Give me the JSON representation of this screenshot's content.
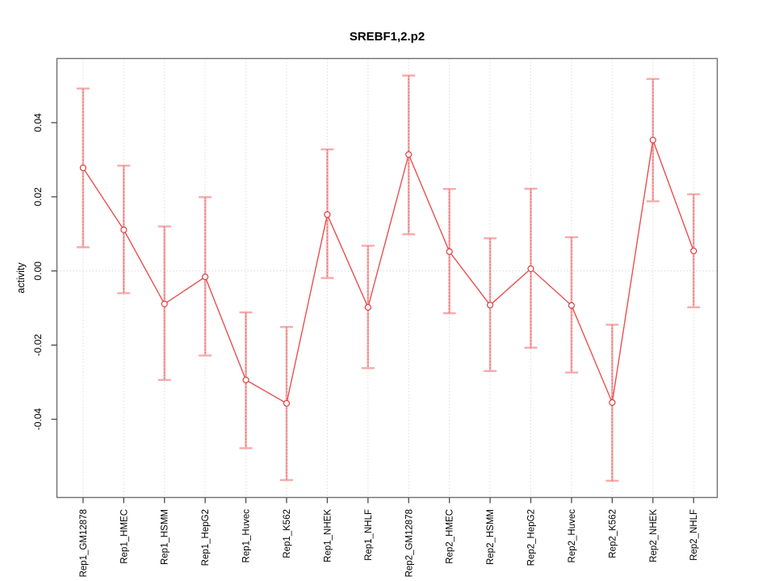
{
  "figure": {
    "title": "SREBF1,2.p2",
    "y_axis_label": "activity"
  },
  "chart_data": {
    "type": "line",
    "title": "SREBF1,2.p2",
    "xlabel": "",
    "ylabel": "activity",
    "legend_position": "none",
    "grid": "vertical dotted gridline at each category; dotted horizontal reference line at y=0",
    "point_marker": "open-circle",
    "error_bars": true,
    "categories": [
      "Rep1_GM12878",
      "Rep1_HMEC",
      "Rep1_HSMM",
      "Rep1_HepG2",
      "Rep1_Huvec",
      "Rep1_K562",
      "Rep1_NHEK",
      "Rep1_NHLF",
      "Rep2_GM12878",
      "Rep2_HMEC",
      "Rep2_HSMM",
      "Rep2_HepG2",
      "Rep2_Huvec",
      "Rep2_K562",
      "Rep2_NHEK",
      "Rep2_NHLF"
    ],
    "series": [
      {
        "name": "activity",
        "values": [
          0.0278,
          0.0111,
          -0.0089,
          -0.0016,
          -0.0294,
          -0.0357,
          0.0152,
          -0.0098,
          0.0314,
          0.0052,
          -0.0092,
          0.0006,
          -0.0093,
          -0.0355,
          0.0353,
          0.0054
        ],
        "ci_low": [
          0.0064,
          -0.006,
          -0.0294,
          -0.0228,
          -0.0478,
          -0.0564,
          -0.0019,
          -0.0262,
          0.0099,
          -0.0114,
          -0.027,
          -0.0207,
          -0.0274,
          -0.0566,
          0.0188,
          -0.0098
        ],
        "ci_high": [
          0.0492,
          0.0284,
          0.012,
          0.0199,
          -0.0112,
          -0.0151,
          0.0328,
          0.0068,
          0.0527,
          0.0221,
          0.0088,
          0.0222,
          0.0091,
          -0.0145,
          0.0518,
          0.0207
        ]
      }
    ],
    "yticks": [
      -0.04,
      -0.02,
      0.0,
      0.02,
      0.04
    ],
    "ytick_labels": [
      "-0.04",
      "-0.02",
      "0.00",
      "0.02",
      "0.04"
    ],
    "ylim": [
      -0.0611,
      0.0573
    ],
    "colors": {
      "series_line": "#e85050",
      "point_stroke": "#d94040",
      "error_bar": "#f6abab",
      "error_bar_core": "#e06060",
      "gridline": "#dedede",
      "zero_line": "#d8d8d8",
      "frame": "#6e6e6e",
      "tick": "#4a4a4a",
      "text": "#000000"
    }
  }
}
